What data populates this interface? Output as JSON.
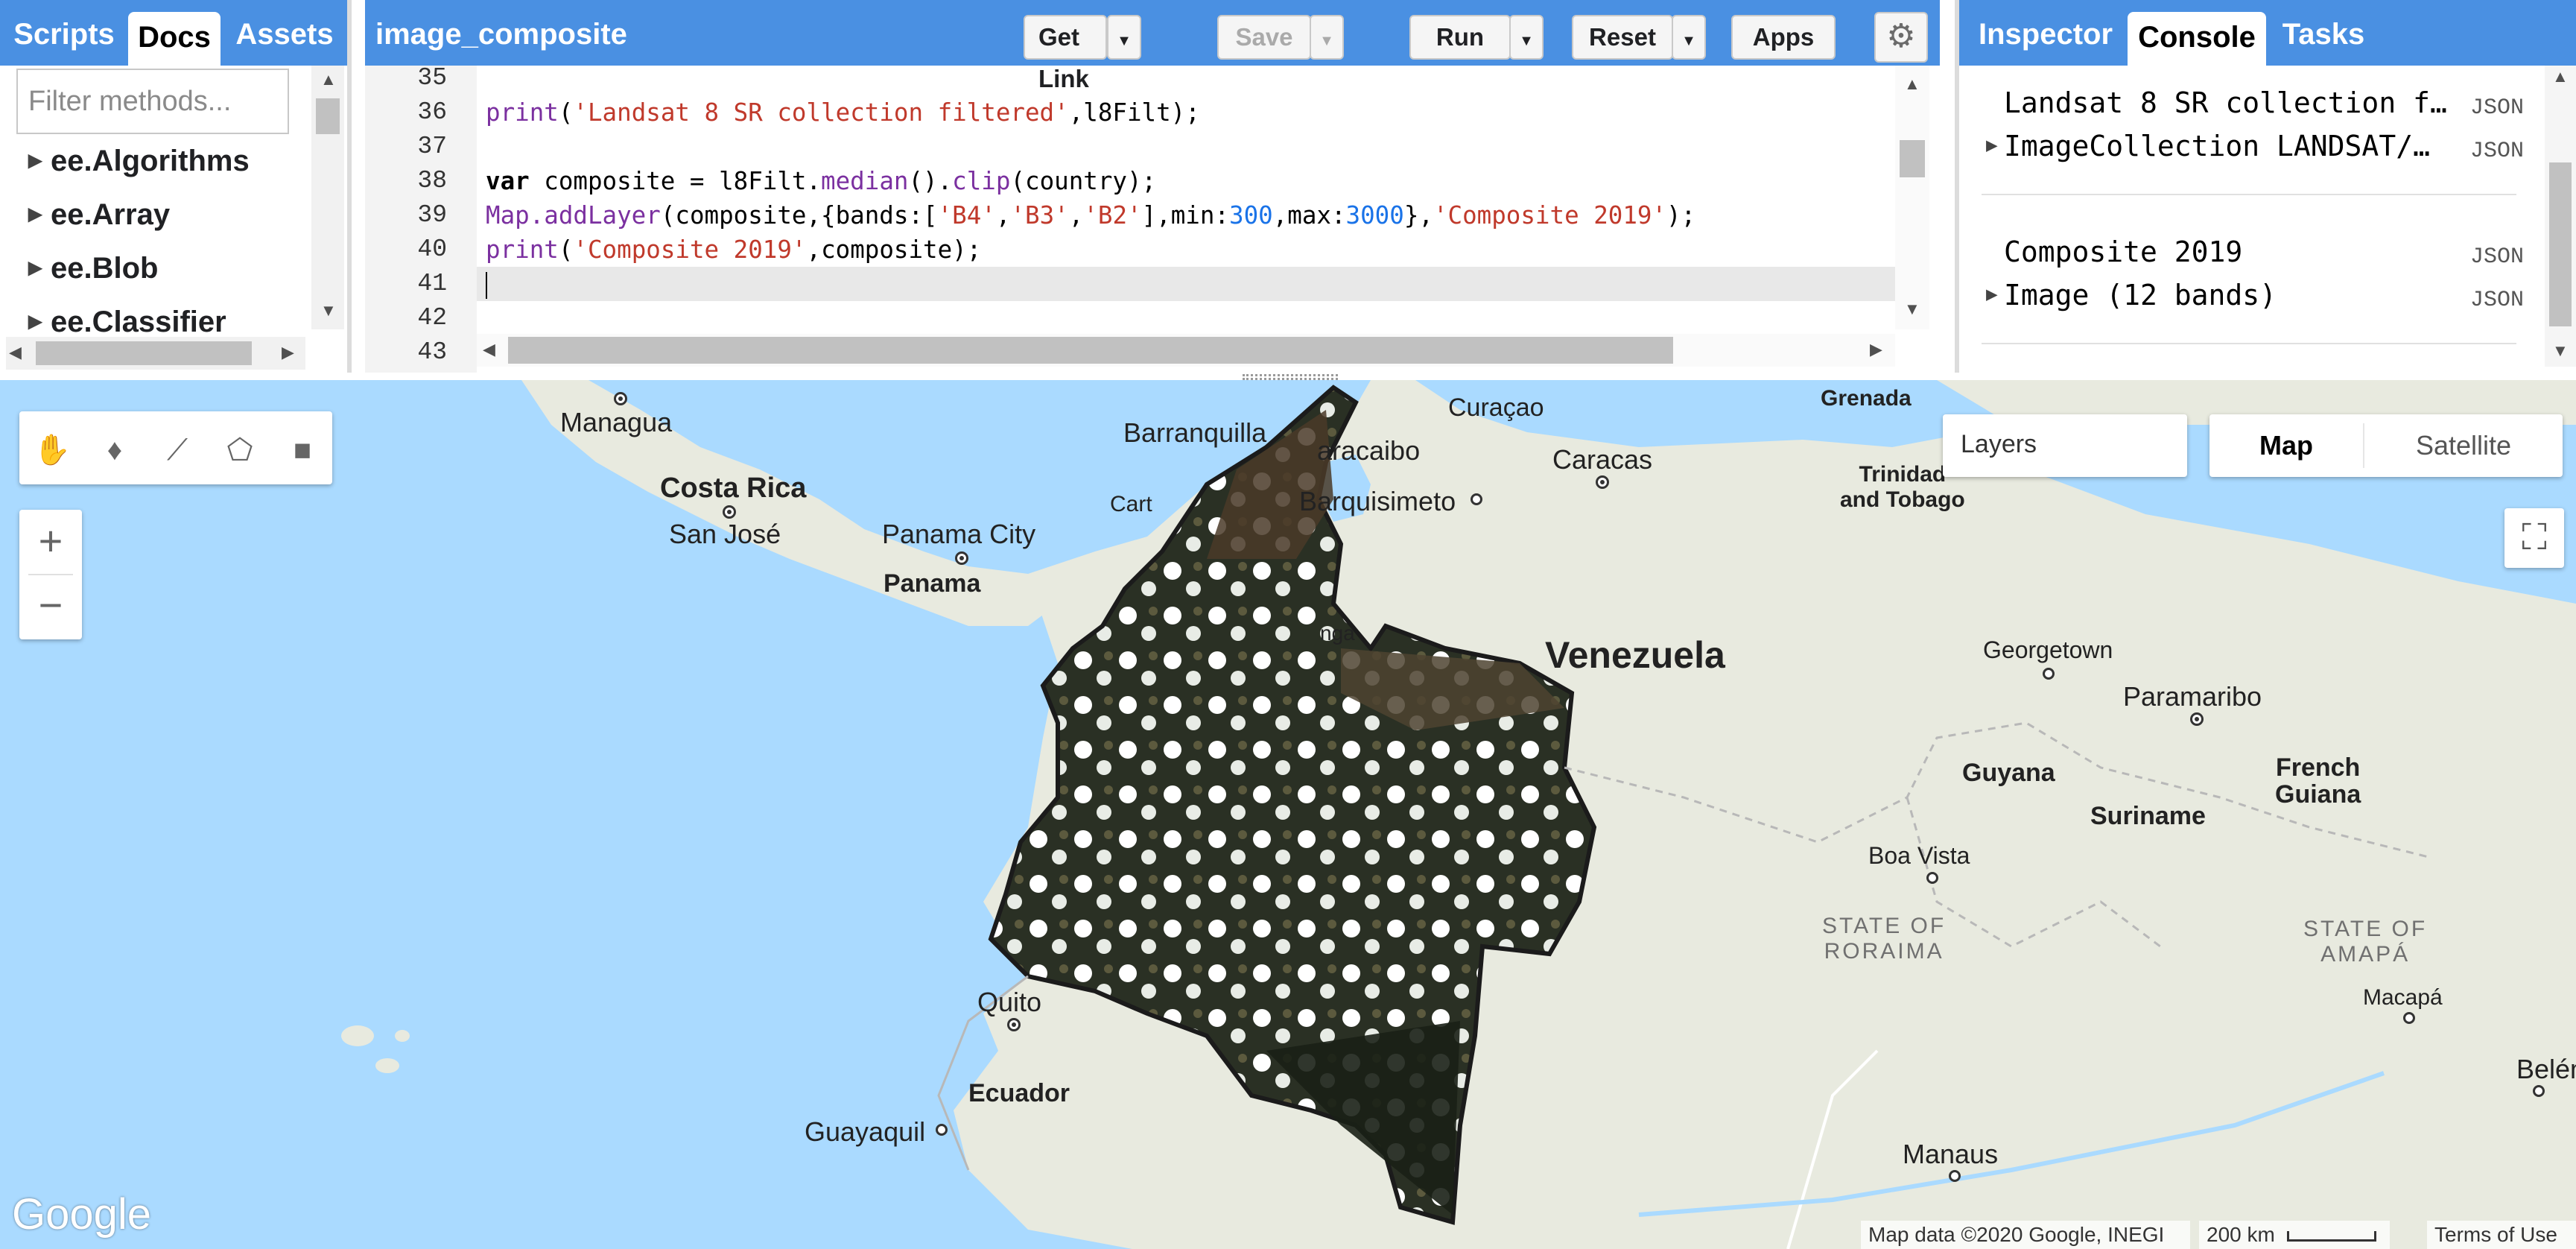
{
  "left_panel": {
    "tabs": [
      {
        "label": "Scripts",
        "active": false
      },
      {
        "label": "Docs",
        "active": true
      },
      {
        "label": "Assets",
        "active": false
      }
    ],
    "filter_placeholder": "Filter methods...",
    "items": [
      "ee.Algorithms",
      "ee.Array",
      "ee.Blob",
      "ee.Classifier"
    ]
  },
  "editor": {
    "title": "image_composite",
    "buttons": {
      "get_link": "Get Link",
      "save": "Save",
      "run": "Run",
      "reset": "Reset",
      "apps": "Apps"
    },
    "line_numbers": [
      "35",
      "36",
      "37",
      "38",
      "39",
      "40",
      "41",
      "42",
      "43"
    ],
    "active_line": "41",
    "code": {
      "l36": {
        "fn": "print",
        "open": "(",
        "str": "'Landsat 8 SR collection filtered'",
        "rest": ",l8Filt);"
      },
      "l38": {
        "kw": "var",
        "a": " composite = l8Filt.",
        "fn1": "median",
        "b": "().",
        "fn2": "clip",
        "c": "(country);"
      },
      "l39": {
        "fn": "Map.addLayer",
        "a": "(composite,{bands:[",
        "s1": "'B4'",
        "c1": ",",
        "s2": "'B3'",
        "c2": ",",
        "s3": "'B2'",
        "b": "],min:",
        "n1": "300",
        "c3": ",max:",
        "n2": "3000",
        "c4": "},",
        "s4": "'Composite 2019'",
        "end": ");"
      },
      "l40": {
        "fn": "print",
        "open": "(",
        "str": "'Composite 2019'",
        "rest": ",composite);"
      }
    }
  },
  "right_panel": {
    "tabs": [
      {
        "label": "Inspector",
        "active": false
      },
      {
        "label": "Console",
        "active": true
      },
      {
        "label": "Tasks",
        "active": false
      }
    ],
    "console": [
      {
        "text": "Landsat 8 SR collection f…",
        "badge": "JSON"
      },
      {
        "text": "ImageCollection LANDSAT/…",
        "badge": "JSON"
      },
      {
        "text": "Composite 2019",
        "badge": "JSON"
      },
      {
        "text": "Image (12 bands)",
        "badge": "JSON"
      }
    ]
  },
  "map": {
    "layers_label": "Layers",
    "map_types": [
      "Map",
      "Satellite"
    ],
    "zoom_in": "+",
    "zoom_out": "−",
    "google": "Google",
    "attribution": "Map data ©2020 Google, INEGI",
    "scale": "200 km",
    "terms": "Terms of Use",
    "labels": {
      "managua": "Managua",
      "costa_rica": "Costa Rica",
      "san_jose": "San José",
      "panama_city": "Panama City",
      "panama": "Panama",
      "barranquilla": "Barranquilla",
      "cart": "Cart",
      "maracaibo": "aracaibo",
      "curacao": "Curaçao",
      "barquisimeto": "Barquisimeto",
      "caracas": "Caracas",
      "grenada": "Grenada",
      "trinidad": "Trinidad\nand Tobago",
      "venezuela": "Venezuela",
      "nga": "nga",
      "georgetown": "Georgetown",
      "paramaribo": "Paramaribo",
      "guyana": "Guyana",
      "suriname": "Suriname",
      "french_guiana": "French\nGuiana",
      "boa_vista": "Boa Vista",
      "roraima": "STATE OF\nRORAIMA",
      "amapa": "STATE OF\nAMAPÁ",
      "macapa": "Macapá",
      "quito": "Quito",
      "ecuador": "Ecuador",
      "guayaquil": "Guayaquil",
      "manaus": "Manaus",
      "belem": "Belém"
    }
  },
  "colors": {
    "accent": "#4a90e2",
    "water": "#aadaff",
    "land": "#e8eadf",
    "code_function": "#7b30a0",
    "code_string": "#c0392b",
    "code_number": "#1a73e8"
  }
}
